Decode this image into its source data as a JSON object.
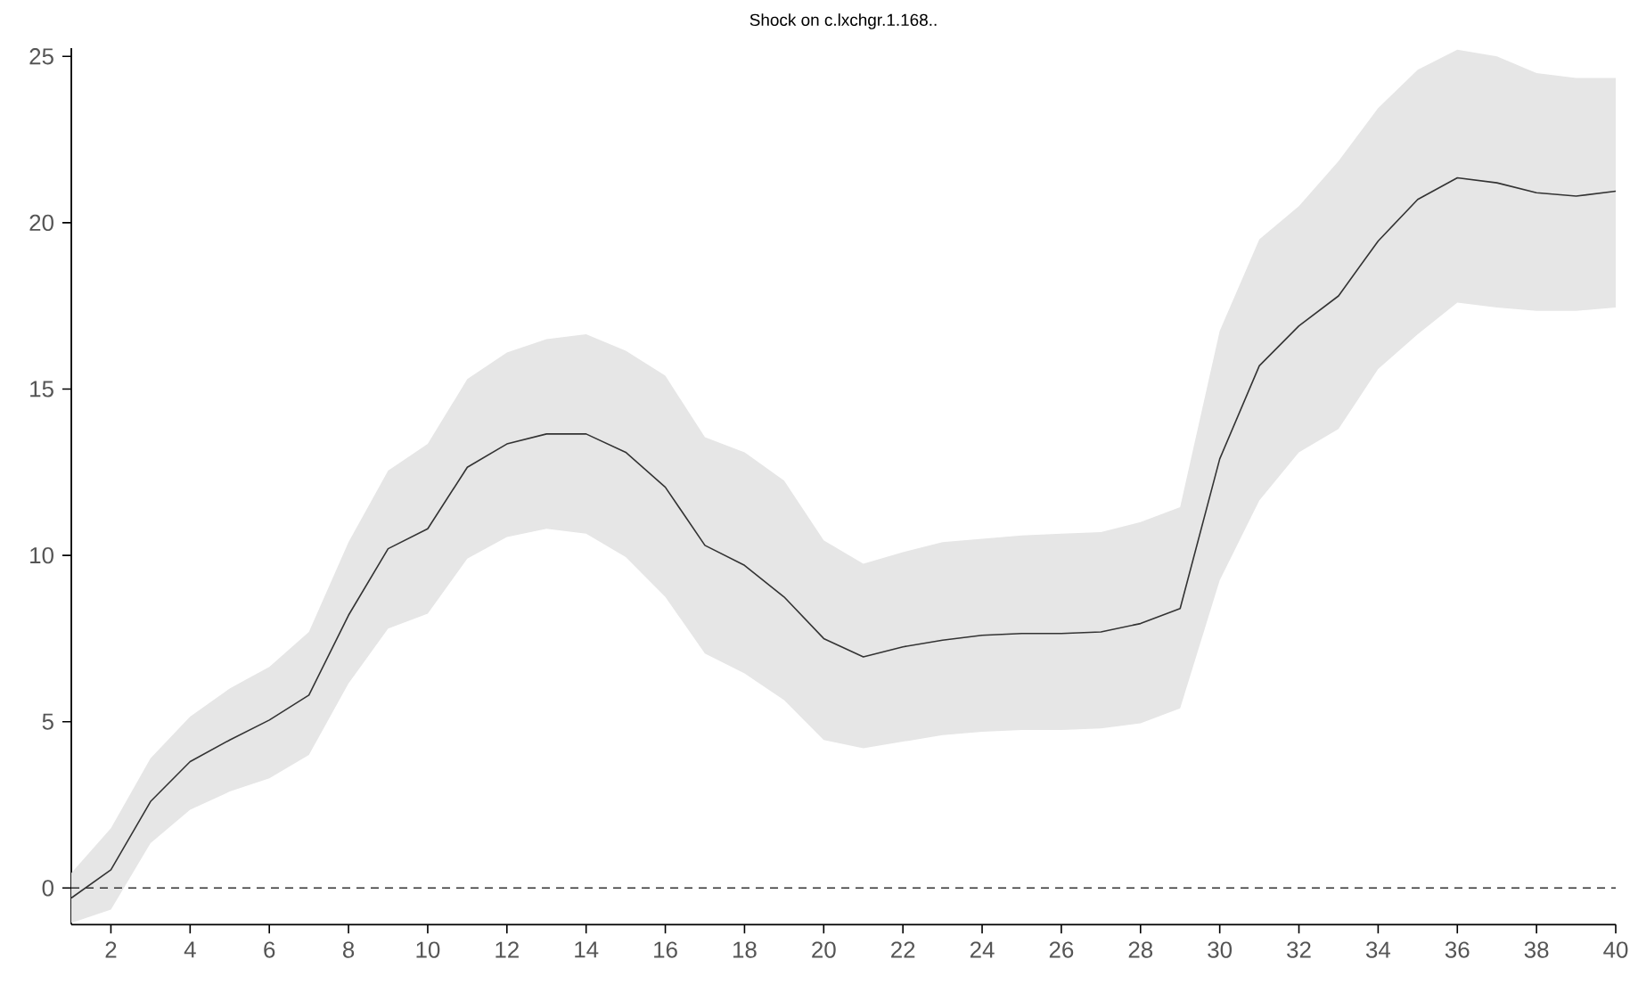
{
  "chart_data": {
    "type": "line",
    "title": "Shock on c.lxchgr.1.168..",
    "x": [
      1,
      2,
      3,
      4,
      5,
      6,
      7,
      8,
      9,
      10,
      11,
      12,
      13,
      14,
      15,
      16,
      17,
      18,
      19,
      20,
      21,
      22,
      23,
      24,
      25,
      26,
      27,
      28,
      29,
      30,
      31,
      32,
      33,
      34,
      35,
      36,
      37,
      38,
      39,
      40
    ],
    "series": [
      {
        "color": "#333333",
        "values": [
          -0.3,
          0.55,
          2.6,
          3.8,
          4.45,
          5.05,
          5.8,
          8.2,
          10.2,
          10.8,
          12.65,
          13.35,
          13.65,
          13.65,
          13.1,
          12.05,
          10.3,
          9.7,
          8.75,
          7.5,
          6.95,
          7.25,
          7.45,
          7.6,
          7.65,
          7.65,
          7.7,
          7.95,
          8.4,
          12.9,
          15.7,
          16.9,
          17.8,
          19.45,
          20.7,
          21.35,
          21.2,
          20.9,
          20.8,
          20.95
        ],
        "upper": [
          0.45,
          1.8,
          3.9,
          5.15,
          6.0,
          6.65,
          7.7,
          10.4,
          12.55,
          13.35,
          15.3,
          16.1,
          16.5,
          16.65,
          16.15,
          15.4,
          13.55,
          13.1,
          12.25,
          10.45,
          9.75,
          10.1,
          10.4,
          10.5,
          10.6,
          10.65,
          10.7,
          11.0,
          11.45,
          16.75,
          19.5,
          20.5,
          21.85,
          23.45,
          24.6,
          25.2,
          25.0,
          24.5,
          24.35,
          24.35
        ],
        "lower": [
          -1.05,
          -0.65,
          1.35,
          2.35,
          2.9,
          3.3,
          4.0,
          6.15,
          7.8,
          8.25,
          9.9,
          10.55,
          10.8,
          10.65,
          9.95,
          8.75,
          7.05,
          6.45,
          5.65,
          4.45,
          4.2,
          4.4,
          4.6,
          4.7,
          4.75,
          4.75,
          4.8,
          4.95,
          5.4,
          9.25,
          11.65,
          13.1,
          13.8,
          15.6,
          16.65,
          17.6,
          17.45,
          17.35,
          17.35,
          17.45
        ]
      }
    ],
    "xlim": [
      1,
      40
    ],
    "ylim": [
      -1.1,
      25.25
    ],
    "xticks": [
      2,
      4,
      6,
      8,
      10,
      12,
      14,
      16,
      18,
      20,
      22,
      24,
      26,
      28,
      30,
      32,
      34,
      36,
      38,
      40
    ],
    "yticks": [
      0,
      5,
      10,
      15,
      20,
      25
    ],
    "ref_lines": [
      {
        "axis": "y",
        "value": 0,
        "color": "#333333",
        "line_style": "dashed"
      }
    ]
  }
}
